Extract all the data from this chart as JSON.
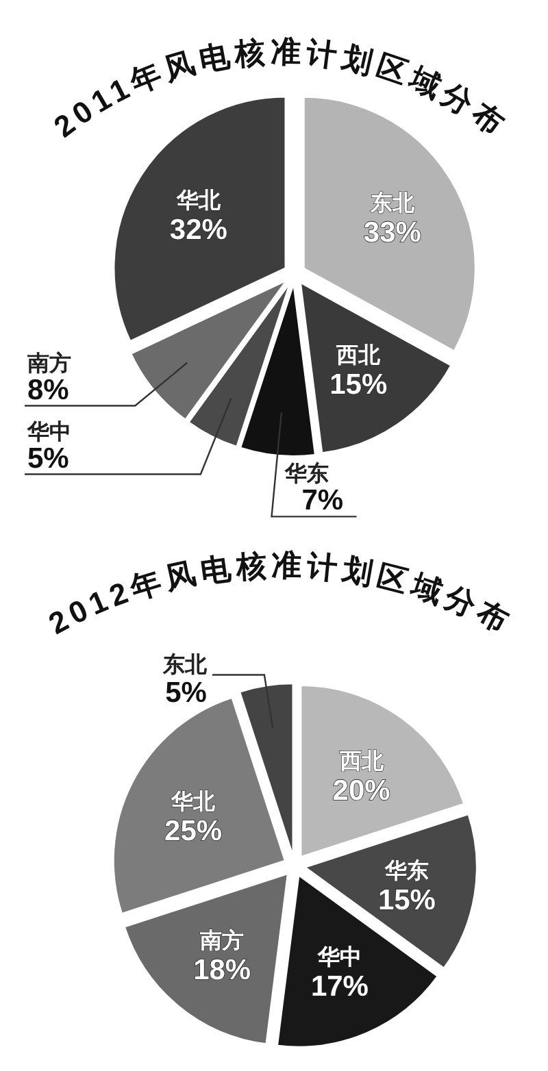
{
  "chart_data": [
    {
      "type": "pie",
      "title": "2011年风电核准计划区域分布",
      "categories": [
        "东北",
        "西北",
        "华东",
        "华中",
        "南方",
        "华北"
      ],
      "values": [
        33,
        15,
        7,
        5,
        8,
        32
      ],
      "value_labels": [
        "33%",
        "15%",
        "7%",
        "5%",
        "8%",
        "32%"
      ],
      "colors": [
        "#b4b4b4",
        "#3a3a3a",
        "#111111",
        "#4a4a4a",
        "#6b6b6b",
        "#3d3d3d"
      ]
    },
    {
      "type": "pie",
      "title": "2012年风电核准计划区域分布",
      "categories": [
        "西北",
        "华东",
        "华中",
        "南方",
        "华北",
        "东北"
      ],
      "values": [
        20,
        15,
        17,
        18,
        25,
        5
      ],
      "value_labels": [
        "20%",
        "15%",
        "17%",
        "18%",
        "25%",
        "5%"
      ],
      "colors": [
        "#b8b8b8",
        "#484848",
        "#181818",
        "#6a6a6a",
        "#7c7c7c",
        "#444444"
      ]
    }
  ]
}
